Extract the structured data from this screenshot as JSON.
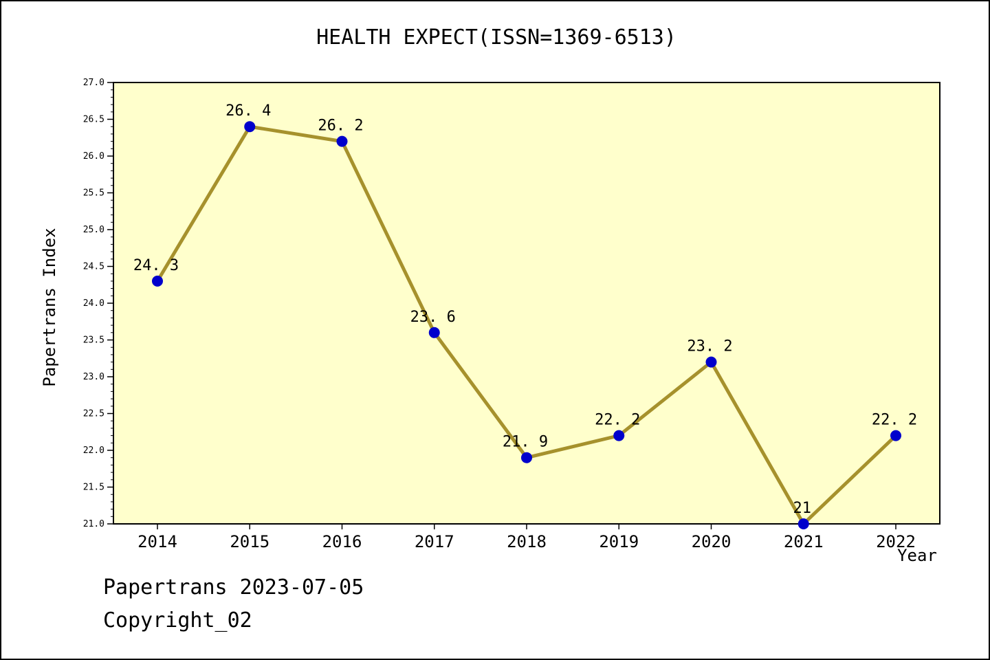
{
  "title": "HEALTH EXPECT(ISSN=1369-6513)",
  "footer": {
    "line1": "Papertrans 2023-07-05",
    "line2": "Copyright_02"
  },
  "chart_data": {
    "type": "line",
    "x": [
      2014,
      2015,
      2016,
      2017,
      2018,
      2019,
      2020,
      2021,
      2022
    ],
    "values": [
      24.3,
      26.4,
      26.2,
      23.6,
      21.9,
      22.2,
      23.2,
      21,
      22.2
    ],
    "point_labels": [
      "24. 3",
      "26. 4",
      "26. 2",
      "23. 6",
      "21. 9",
      "22. 2",
      "23. 2",
      "21",
      "22. 2"
    ],
    "xlabel": "Year",
    "ylabel": "Papertrans Index",
    "ylim": [
      21.0,
      27.0
    ],
    "ytick_step": 0.5,
    "y_minor_step": 0.1,
    "grid": false,
    "legend": "none",
    "colors": {
      "line": "#A6912C",
      "marker": "#0000CC",
      "plot_bg": "#FFFFCC",
      "axis": "#000000"
    }
  }
}
